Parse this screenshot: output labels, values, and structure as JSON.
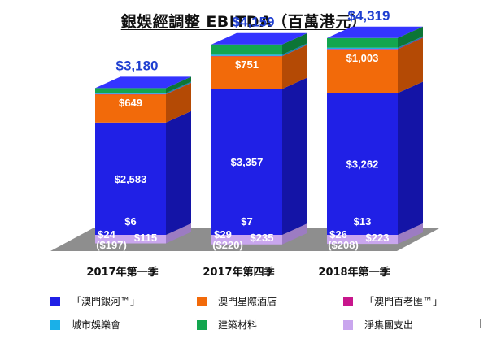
{
  "chart_data": {
    "type": "bar",
    "stacked": true,
    "three_d": true,
    "title": "銀娛經調整 EBITDA（百萬港元）",
    "categories": [
      "2017年第一季",
      "2017年第四季",
      "2018年第一季"
    ],
    "totals": [
      3180,
      4159,
      4319
    ],
    "total_labels": [
      "$3,180",
      "$4,159",
      "$4,319"
    ],
    "series": [
      {
        "name": "「澳門銀河™」",
        "color": "#2020e6",
        "side_color": "#1414a6",
        "values": [
          2583,
          3357,
          3262
        ],
        "labels": [
          "$2,583",
          "$3,357",
          "$3,262"
        ]
      },
      {
        "name": "澳門星際酒店",
        "color": "#f26a0a",
        "side_color": "#b44a05",
        "values": [
          649,
          751,
          1003
        ],
        "labels": [
          "$649",
          "$751",
          "$1,003"
        ]
      },
      {
        "name": "「澳門百老匯™」",
        "color": "#c8168c",
        "side_color": "#8e0f63",
        "values": [
          6,
          7,
          13
        ],
        "labels": [
          "$6",
          "$7",
          "$13"
        ]
      },
      {
        "name": "城市娛樂會",
        "color": "#1ab0e8",
        "side_color": "#1180aa",
        "values": [
          24,
          29,
          26
        ],
        "labels": [
          "$24",
          "$29",
          "$26"
        ]
      },
      {
        "name": "建築材料",
        "color": "#13a64f",
        "side_color": "#0c7536",
        "values": [
          115,
          235,
          223
        ],
        "labels": [
          "$115",
          "$235",
          "$223"
        ]
      },
      {
        "name": "淨集團支出",
        "color": "#c9a6ee",
        "side_color": "#9c7cc2",
        "values": [
          -197,
          -220,
          -208
        ],
        "labels": [
          "($197)",
          "($220)",
          "($208)"
        ]
      }
    ],
    "ylim": [
      -250,
      4500
    ],
    "grid": false,
    "legend_position": "bottom"
  }
}
